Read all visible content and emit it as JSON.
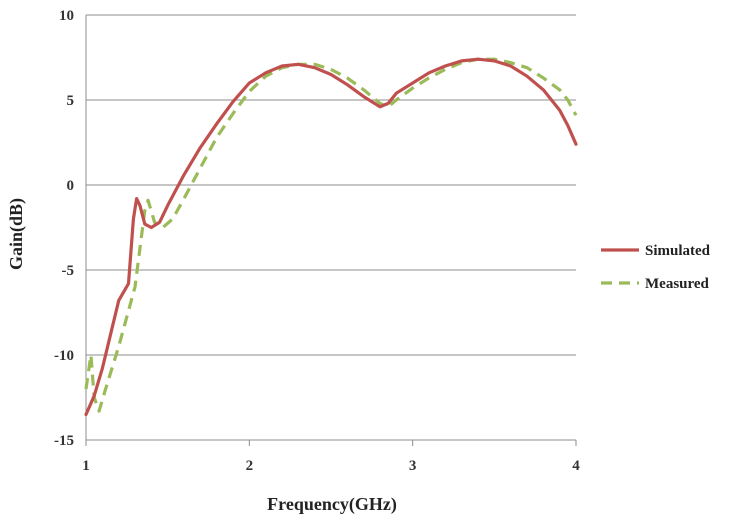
{
  "chart_data": {
    "type": "line",
    "title": "",
    "xlabel": "Frequency(GHz)",
    "ylabel": "Gain(dB)",
    "xlim": [
      1,
      4
    ],
    "ylim": [
      -15,
      10
    ],
    "x_ticks": [
      "1",
      "2",
      "3",
      "4"
    ],
    "y_ticks": [
      "10",
      "5",
      "0",
      "-5",
      "-10",
      "-15"
    ],
    "grid": "horizontal",
    "legend_position": "right",
    "series": [
      {
        "name": "Simulated",
        "color": "#c0504d",
        "style": "solid",
        "points": [
          [
            1.0,
            -13.5
          ],
          [
            1.05,
            -12.4
          ],
          [
            1.1,
            -10.8
          ],
          [
            1.15,
            -8.8
          ],
          [
            1.2,
            -6.8
          ],
          [
            1.26,
            -5.8
          ],
          [
            1.29,
            -2.0
          ],
          [
            1.31,
            -0.8
          ],
          [
            1.33,
            -1.2
          ],
          [
            1.36,
            -2.3
          ],
          [
            1.4,
            -2.5
          ],
          [
            1.45,
            -2.2
          ],
          [
            1.5,
            -1.2
          ],
          [
            1.6,
            0.6
          ],
          [
            1.7,
            2.2
          ],
          [
            1.8,
            3.6
          ],
          [
            1.9,
            4.9
          ],
          [
            2.0,
            6.0
          ],
          [
            2.1,
            6.6
          ],
          [
            2.2,
            7.0
          ],
          [
            2.3,
            7.1
          ],
          [
            2.4,
            6.9
          ],
          [
            2.5,
            6.5
          ],
          [
            2.6,
            5.9
          ],
          [
            2.7,
            5.2
          ],
          [
            2.8,
            4.6
          ],
          [
            2.85,
            4.8
          ],
          [
            2.9,
            5.4
          ],
          [
            3.0,
            6.0
          ],
          [
            3.1,
            6.6
          ],
          [
            3.2,
            7.0
          ],
          [
            3.3,
            7.3
          ],
          [
            3.4,
            7.4
          ],
          [
            3.5,
            7.3
          ],
          [
            3.6,
            7.0
          ],
          [
            3.7,
            6.4
          ],
          [
            3.8,
            5.6
          ],
          [
            3.9,
            4.4
          ],
          [
            3.95,
            3.5
          ],
          [
            4.0,
            2.4
          ]
        ]
      },
      {
        "name": "Measured",
        "color": "#9bbb59",
        "style": "dashed",
        "points": [
          [
            1.0,
            -12.0
          ],
          [
            1.03,
            -10.0
          ],
          [
            1.05,
            -12.5
          ],
          [
            1.08,
            -13.3
          ],
          [
            1.12,
            -12.0
          ],
          [
            1.2,
            -9.5
          ],
          [
            1.3,
            -6.0
          ],
          [
            1.34,
            -3.0
          ],
          [
            1.36,
            -1.5
          ],
          [
            1.38,
            -0.9
          ],
          [
            1.42,
            -2.2
          ],
          [
            1.47,
            -2.5
          ],
          [
            1.53,
            -2.0
          ],
          [
            1.6,
            -0.8
          ],
          [
            1.7,
            1.0
          ],
          [
            1.8,
            2.8
          ],
          [
            1.9,
            4.2
          ],
          [
            2.0,
            5.5
          ],
          [
            2.1,
            6.4
          ],
          [
            2.2,
            6.9
          ],
          [
            2.3,
            7.1
          ],
          [
            2.4,
            7.1
          ],
          [
            2.5,
            6.8
          ],
          [
            2.6,
            6.3
          ],
          [
            2.7,
            5.6
          ],
          [
            2.8,
            4.8
          ],
          [
            2.85,
            4.6
          ],
          [
            2.9,
            5.0
          ],
          [
            3.0,
            5.7
          ],
          [
            3.1,
            6.3
          ],
          [
            3.2,
            6.8
          ],
          [
            3.3,
            7.2
          ],
          [
            3.4,
            7.4
          ],
          [
            3.5,
            7.4
          ],
          [
            3.6,
            7.2
          ],
          [
            3.7,
            6.9
          ],
          [
            3.8,
            6.3
          ],
          [
            3.9,
            5.6
          ],
          [
            3.95,
            5.0
          ],
          [
            4.0,
            4.1
          ]
        ]
      }
    ]
  }
}
